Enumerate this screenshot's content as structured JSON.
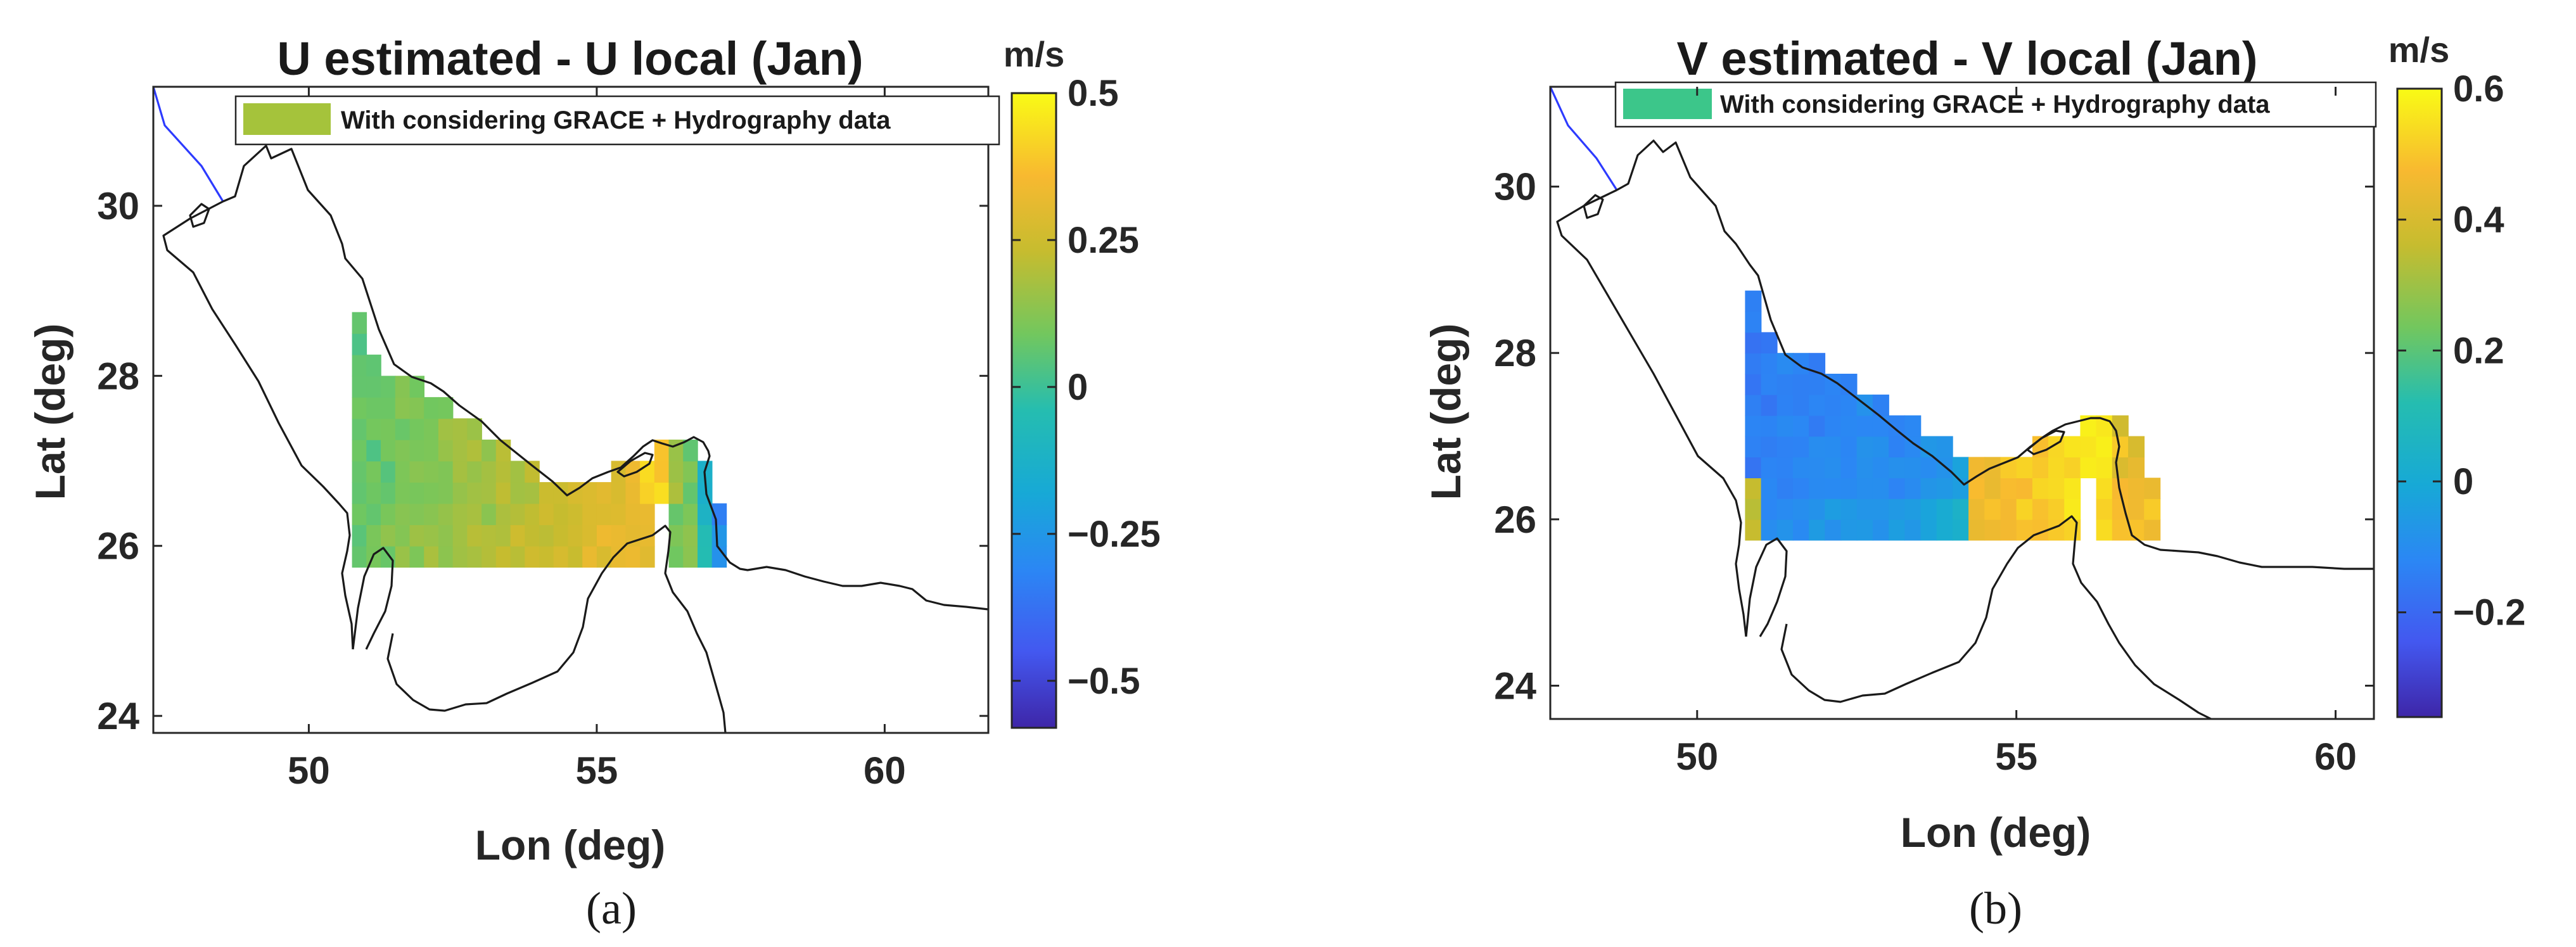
{
  "chart_data": [
    {
      "type": "heatmap",
      "title": "U estimated - U local (Jan)",
      "xlabel": "Lon (deg)",
      "ylabel": "Lat (deg)",
      "xlim": [
        47.3,
        61.8
      ],
      "ylim": [
        23.8,
        31.4
      ],
      "xticks": [
        "50",
        "55",
        "60"
      ],
      "yticks": [
        "24",
        "26",
        "28",
        "30"
      ],
      "legend": {
        "label": "With considering GRACE + Hydrography data",
        "color": "#a5c33b",
        "placement": "top-right"
      },
      "colorbar": {
        "unit": "m/s",
        "range": [
          -0.58,
          0.5
        ],
        "ticks": [
          "0.5",
          "0.25",
          "0",
          "−0.25",
          "−0.5"
        ],
        "tick_values": [
          0.5,
          0.25,
          0,
          -0.25,
          -0.5
        ]
      },
      "panel_label": "(a)",
      "grid_lon": [
        50.75,
        57.25,
        0.25
      ],
      "grid_lat": [
        25.75,
        28.95,
        0.25
      ],
      "field": "u",
      "coastline_color": "#1a1a1a",
      "river_color": "#2d3bff",
      "grid": false
    },
    {
      "type": "heatmap",
      "title": "V estimated - V local (Jan)",
      "xlabel": "Lon (deg)",
      "ylabel": "Lat (deg)",
      "xlim": [
        47.7,
        60.6
      ],
      "ylim": [
        23.6,
        31.2
      ],
      "xticks": [
        "50",
        "55",
        "60"
      ],
      "yticks": [
        "24",
        "26",
        "28",
        "30"
      ],
      "legend": {
        "label": "With considering GRACE + Hydrography data",
        "color": "#3cc68a",
        "placement": "top-right"
      },
      "colorbar": {
        "unit": "m/s",
        "range": [
          -0.36,
          0.6
        ],
        "ticks": [
          "0.6",
          "0.4",
          "0.2",
          "0",
          "−0.2"
        ],
        "tick_values": [
          0.6,
          0.4,
          0.2,
          0,
          -0.2
        ]
      },
      "panel_label": "(b)",
      "grid_lon": [
        50.75,
        57.25,
        0.25
      ],
      "grid_lat": [
        25.75,
        28.95,
        0.25
      ],
      "field": "v",
      "coastline_color": "#1a1a1a",
      "river_color": "#2d3bff",
      "grid": false
    }
  ]
}
